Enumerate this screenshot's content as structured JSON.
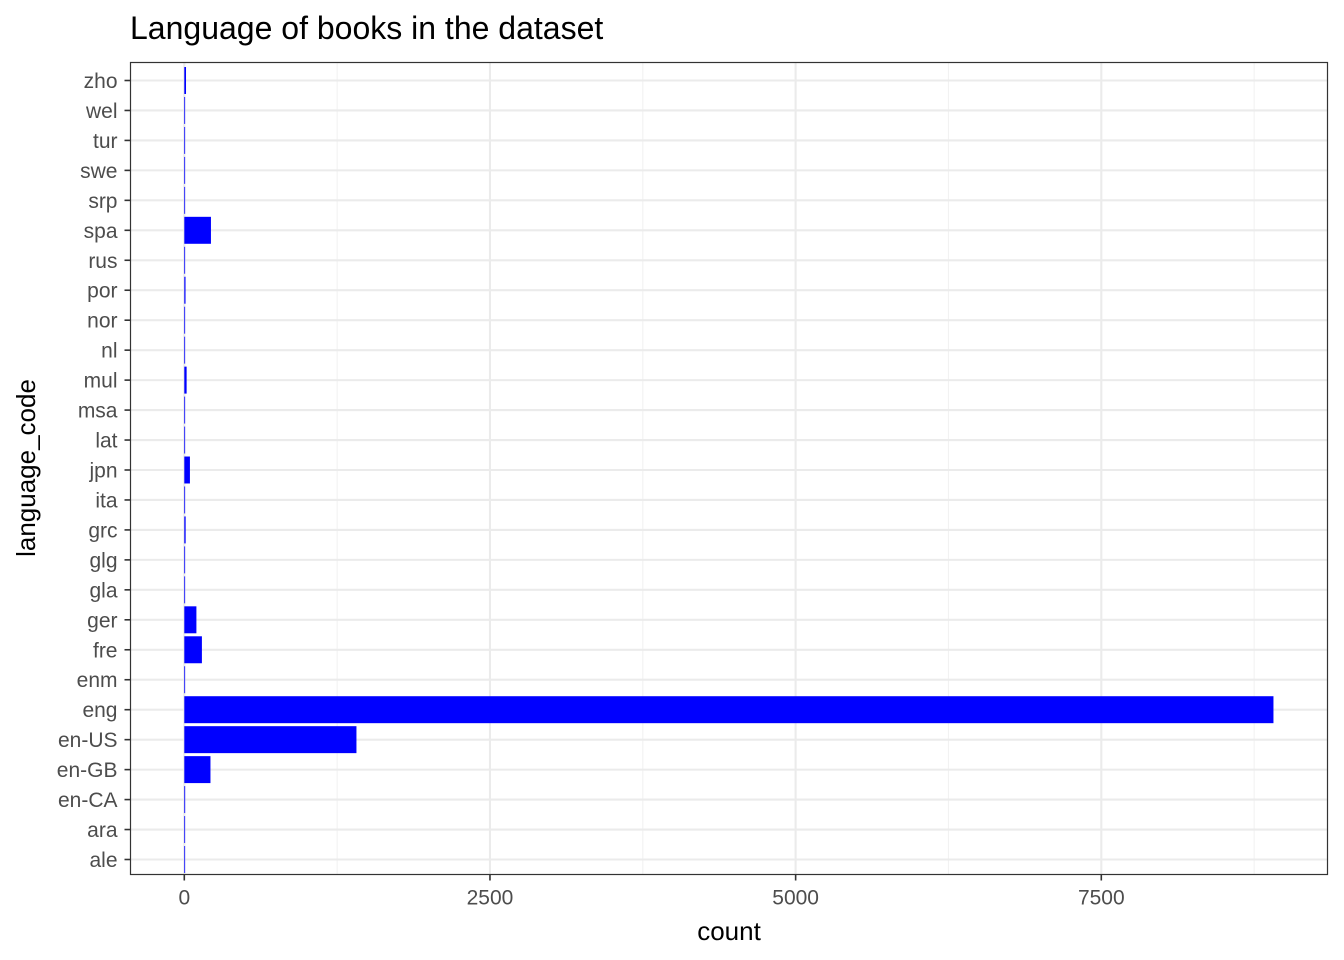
{
  "chart_data": {
    "type": "bar",
    "orientation": "horizontal",
    "title": "Language of books in the dataset",
    "xlabel": "count",
    "ylabel": "language_code",
    "categories": [
      "ale",
      "ara",
      "en-CA",
      "en-GB",
      "en-US",
      "eng",
      "enm",
      "fre",
      "ger",
      "gla",
      "glg",
      "grc",
      "ita",
      "jpn",
      "lat",
      "msa",
      "mul",
      "nl",
      "nor",
      "por",
      "rus",
      "spa",
      "srp",
      "swe",
      "tur",
      "wel",
      "zho"
    ],
    "values": [
      1,
      1,
      7,
      214,
      1408,
      8908,
      3,
      144,
      99,
      1,
      1,
      11,
      5,
      46,
      3,
      1,
      19,
      1,
      1,
      10,
      2,
      218,
      1,
      2,
      1,
      1,
      14
    ],
    "xlim": [
      -440,
      9350
    ],
    "xticks": [
      0,
      2500,
      5000,
      7500
    ],
    "xtick_labels": [
      "0",
      "2500",
      "5000",
      "7500"
    ],
    "grid": true,
    "theme": "bw",
    "colors": {
      "bar": "#0000ff",
      "panel_border": "#333333",
      "grid_major": "#ebebeb",
      "grid_minor": "#f2f2f2"
    }
  }
}
